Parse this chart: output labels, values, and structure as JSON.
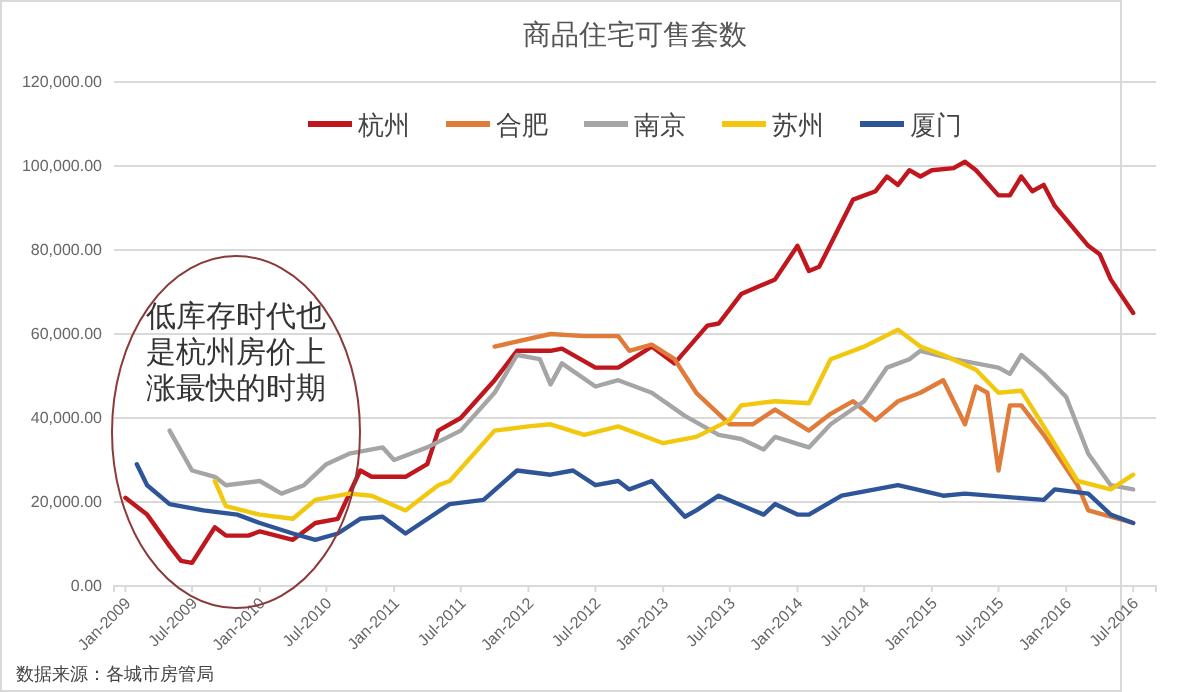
{
  "chart_data": {
    "type": "line",
    "title": "商品住宅可售套数",
    "legend": "top",
    "grid": "y",
    "line_style": "solid",
    "marker": "none",
    "xlim": [
      "2008-12",
      "2016-09"
    ],
    "xticks": [
      {
        "value": "2009-01",
        "label": "Jan-2009"
      },
      {
        "value": "2009-07",
        "label": "Jul-2009"
      },
      {
        "value": "2010-01",
        "label": "Jan-2010"
      },
      {
        "value": "2010-07",
        "label": "Jul-2010"
      },
      {
        "value": "2011-01",
        "label": "Jan-2011"
      },
      {
        "value": "2011-07",
        "label": "Jul-2011"
      },
      {
        "value": "2012-01",
        "label": "Jan-2012"
      },
      {
        "value": "2012-07",
        "label": "Jul-2012"
      },
      {
        "value": "2013-01",
        "label": "Jan-2013"
      },
      {
        "value": "2013-07",
        "label": "Jul-2013"
      },
      {
        "value": "2014-01",
        "label": "Jan-2014"
      },
      {
        "value": "2014-07",
        "label": "Jul-2014"
      },
      {
        "value": "2015-01",
        "label": "Jan-2015"
      },
      {
        "value": "2015-07",
        "label": "Jul-2015"
      },
      {
        "value": "2016-01",
        "label": "Jan-2016"
      },
      {
        "value": "2016-07",
        "label": "Jul-2016"
      }
    ],
    "ylim": [
      0,
      120000
    ],
    "yticks": [
      {
        "value": 0,
        "label": "0.00"
      },
      {
        "value": 20000,
        "label": "20,000.00"
      },
      {
        "value": 40000,
        "label": "40,000.00"
      },
      {
        "value": 60000,
        "label": "60,000.00"
      },
      {
        "value": 80000,
        "label": "80,000.00"
      },
      {
        "value": 100000,
        "label": "100,000.00"
      },
      {
        "value": 120000,
        "label": "120,000.00"
      }
    ],
    "series": [
      {
        "name": "杭州",
        "color": "#c0161d",
        "x": [
          "2009-01",
          "2009-03",
          "2009-05",
          "2009-06",
          "2009-07",
          "2009-09",
          "2009-10",
          "2009-12",
          "2010-01",
          "2010-04",
          "2010-06",
          "2010-08",
          "2010-10",
          "2010-11",
          "2011-02",
          "2011-04",
          "2011-05",
          "2011-07",
          "2011-10",
          "2011-12",
          "2012-03",
          "2012-04",
          "2012-07",
          "2012-09",
          "2012-12",
          "2013-02",
          "2013-05",
          "2013-06",
          "2013-08",
          "2013-11",
          "2014-01",
          "2014-02",
          "2014-03",
          "2014-06",
          "2014-08",
          "2014-09",
          "2014-10",
          "2014-11",
          "2014-12",
          "2015-01",
          "2015-03",
          "2015-04",
          "2015-05",
          "2015-07",
          "2015-08",
          "2015-09",
          "2015-10",
          "2015-11",
          "2015-12",
          "2016-03",
          "2016-04",
          "2016-05",
          "2016-07"
        ],
        "values": [
          21000,
          17000,
          9500,
          6000,
          5500,
          14000,
          12000,
          12000,
          13000,
          11000,
          15000,
          16000,
          27500,
          26000,
          26000,
          29000,
          37000,
          40000,
          49000,
          56000,
          56000,
          56500,
          52000,
          52000,
          57000,
          53000,
          62000,
          62500,
          69500,
          73000,
          81000,
          75000,
          76000,
          92000,
          94000,
          97500,
          95500,
          99000,
          97500,
          99000,
          99500,
          101000,
          99000,
          93000,
          93000,
          97500,
          94000,
          95500,
          90500,
          81000,
          79000,
          73000,
          65000
        ]
      },
      {
        "name": "合肥",
        "color": "#e07b39",
        "x": [
          "2011-10",
          "2012-03",
          "2012-06",
          "2012-09",
          "2012-10",
          "2012-12",
          "2013-02",
          "2013-04",
          "2013-07",
          "2013-09",
          "2013-11",
          "2014-02",
          "2014-04",
          "2014-06",
          "2014-08",
          "2014-10",
          "2014-12",
          "2015-02",
          "2015-04",
          "2015-05",
          "2015-06",
          "2015-07",
          "2015-08",
          "2015-09",
          "2015-11",
          "2016-02",
          "2016-03",
          "2016-05",
          "2016-07"
        ],
        "values": [
          57000,
          60000,
          59500,
          59500,
          56000,
          57500,
          54000,
          46000,
          38500,
          38500,
          42000,
          37000,
          41000,
          44000,
          39500,
          44000,
          46000,
          49000,
          38500,
          47500,
          46000,
          27500,
          43000,
          43000,
          36000,
          24000,
          18000,
          16500,
          15000
        ]
      },
      {
        "name": "南京",
        "color": "#a5a5a5",
        "x": [
          "2009-05",
          "2009-07",
          "2009-09",
          "2009-10",
          "2010-01",
          "2010-03",
          "2010-05",
          "2010-07",
          "2010-09",
          "2010-12",
          "2011-01",
          "2011-04",
          "2011-07",
          "2011-10",
          "2011-12",
          "2012-02",
          "2012-03",
          "2012-04",
          "2012-07",
          "2012-09",
          "2012-12",
          "2013-03",
          "2013-06",
          "2013-08",
          "2013-10",
          "2013-11",
          "2014-02",
          "2014-04",
          "2014-07",
          "2014-09",
          "2014-11",
          "2014-12",
          "2015-03",
          "2015-07",
          "2015-08",
          "2015-09",
          "2015-11",
          "2016-01",
          "2016-03",
          "2016-05",
          "2016-07"
        ],
        "values": [
          37000,
          27500,
          26000,
          24000,
          25000,
          22000,
          24000,
          29000,
          31500,
          33000,
          30000,
          33000,
          37000,
          46000,
          55000,
          54000,
          48000,
          53000,
          47500,
          49000,
          46000,
          40500,
          36000,
          35000,
          32500,
          35500,
          33000,
          38500,
          44000,
          52000,
          54000,
          56000,
          54000,
          52000,
          50500,
          55000,
          50500,
          45000,
          31500,
          24000,
          23000
        ]
      },
      {
        "name": "苏州",
        "color": "#f2c80f",
        "x": [
          "2009-09",
          "2009-10",
          "2010-01",
          "2010-04",
          "2010-06",
          "2010-09",
          "2010-11",
          "2011-02",
          "2011-05",
          "2011-06",
          "2011-10",
          "2012-01",
          "2012-03",
          "2012-06",
          "2012-09",
          "2013-01",
          "2013-04",
          "2013-07",
          "2013-08",
          "2013-11",
          "2014-02",
          "2014-04",
          "2014-07",
          "2014-10",
          "2014-12",
          "2015-02",
          "2015-05",
          "2015-07",
          "2015-09",
          "2015-11",
          "2016-02",
          "2016-05",
          "2016-07"
        ],
        "values": [
          25000,
          19000,
          17000,
          16000,
          20500,
          22000,
          21500,
          18000,
          24000,
          25000,
          37000,
          38000,
          38500,
          36000,
          38000,
          34000,
          35500,
          39500,
          43000,
          44000,
          43500,
          54000,
          57000,
          61000,
          57000,
          55000,
          51500,
          46000,
          46500,
          38000,
          25000,
          23000,
          26500
        ]
      },
      {
        "name": "厦门",
        "color": "#2e5597",
        "x": [
          "2009-02",
          "2009-03",
          "2009-05",
          "2009-08",
          "2009-11",
          "2010-01",
          "2010-04",
          "2010-06",
          "2010-08",
          "2010-10",
          "2010-12",
          "2011-02",
          "2011-06",
          "2011-09",
          "2011-12",
          "2012-03",
          "2012-05",
          "2012-07",
          "2012-09",
          "2012-10",
          "2012-12",
          "2013-03",
          "2013-04",
          "2013-06",
          "2013-10",
          "2013-11",
          "2014-01",
          "2014-02",
          "2014-05",
          "2014-10",
          "2015-02",
          "2015-04",
          "2015-11",
          "2015-12",
          "2016-03",
          "2016-05",
          "2016-07"
        ],
        "values": [
          29000,
          24000,
          19500,
          18000,
          17000,
          15000,
          12500,
          11000,
          12500,
          16000,
          16500,
          12500,
          19500,
          20500,
          27500,
          26500,
          27500,
          24000,
          25000,
          23000,
          25000,
          16500,
          18000,
          21500,
          17000,
          19500,
          17000,
          17000,
          21500,
          24000,
          21500,
          22000,
          20500,
          23000,
          22000,
          17000,
          15000
        ]
      }
    ],
    "annotations": [
      "低库存时代也是杭州房价上涨最快的时期",
      "数据来源：各城市房管局"
    ]
  }
}
